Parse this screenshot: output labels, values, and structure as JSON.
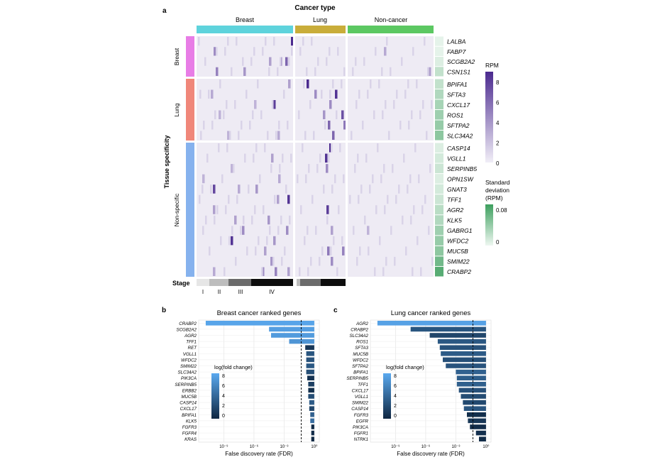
{
  "panel_a": {
    "panel_label": "a",
    "top_title": "Cancer type",
    "groups": [
      {
        "label": "Breast",
        "color": "#5ed3dc"
      },
      {
        "label": "Lung",
        "color": "#c9ad3a"
      },
      {
        "label": "Non-cancer",
        "color": "#5cc862"
      }
    ],
    "ylabel": "Tissue specificity",
    "tissue_groups": [
      {
        "label": "Breast",
        "color": "#e87de6"
      },
      {
        "label": "Lung",
        "color": "#f0877a"
      },
      {
        "label": "Non-specific",
        "color": "#86b2ee"
      }
    ],
    "genes": [
      "LALBA",
      "FABP7",
      "SCGB2A2",
      "CSN1S1",
      "BPIFA1",
      "SFTA3",
      "CXCL17",
      "ROS1",
      "SFTPA2",
      "SLC34A2",
      "CASP14",
      "VGLL1",
      "SERPINB5",
      "OPN1SW",
      "GNAT3",
      "TFF1",
      "AGR2",
      "KLK5",
      "GABRG1",
      "WFDC2",
      "MUC5B",
      "SMIM22",
      "CRABP2"
    ],
    "stage_label": "Stage",
    "stage_ticks": [
      "I",
      "II",
      "III",
      "IV"
    ],
    "rpm_legend": {
      "title": "RPM",
      "ticks": [
        "8",
        "6",
        "4",
        "2",
        "0"
      ],
      "color_low": "#f1eef7",
      "color_high": "#4b2a8f"
    },
    "sd_legend": {
      "title_lines": [
        "Standard",
        "deviation",
        "(RPM)"
      ],
      "ticks": [
        "0.08",
        "0"
      ],
      "color_low": "#eef7f1",
      "color_high": "#3d9f5e"
    }
  },
  "chart_data": [
    {
      "type": "bar",
      "panel_label": "b",
      "title": "Breast cancer ranked genes",
      "xlabel": "False discovery rate (FDR)",
      "x_scale": "log",
      "x_ticks": [
        "10⁻⁹",
        "10⁻⁶",
        "10⁻³",
        "10⁰"
      ],
      "categories": [
        "CRABP2",
        "SCGB2A2",
        "AGR2",
        "TFF1",
        "RET",
        "VGLL1",
        "WFDC2",
        "SMIM22",
        "SLC34A2",
        "PIK3CA",
        "SERPINB5",
        "ERBB2",
        "MUC5B",
        "CASP14",
        "CXCL17",
        "BPIFA1",
        "KLK5",
        "FGFR3",
        "FGFR4",
        "KRAS"
      ],
      "fdr_log10": [
        -10.8,
        -4.5,
        -4.3,
        -2.5,
        -0.9,
        -0.8,
        -0.8,
        -0.8,
        -0.8,
        -0.7,
        -0.6,
        -0.6,
        -0.6,
        -0.5,
        -0.5,
        -0.4,
        -0.4,
        -0.3,
        -0.3,
        -0.3
      ],
      "log_fold_change": [
        8.2,
        7.8,
        7.6,
        7.2,
        1.0,
        3.0,
        2.8,
        3.2,
        2.6,
        0.8,
        1.5,
        0.5,
        2.4,
        3.4,
        2.0,
        3.8,
        4.6,
        0.2,
        0.3,
        0.1
      ],
      "threshold_fdr_log10": -1.3,
      "legend_title": "log(fold change)",
      "legend_ticks": [
        "8",
        "6",
        "4",
        "2",
        "0"
      ]
    },
    {
      "type": "bar",
      "panel_label": "c",
      "title": "Lung cancer ranked genes",
      "xlabel": "False discovery rate (FDR)",
      "x_scale": "log",
      "x_ticks": [
        "10⁻⁹",
        "10⁻⁶",
        "10⁻³",
        "10⁰"
      ],
      "categories": [
        "AGR2",
        "CRABP2",
        "SLC34A2",
        "ROS1",
        "SFTA3",
        "MUC5B",
        "WFDC2",
        "SFTPA2",
        "BPIFA1",
        "SERPINB5",
        "TFF1",
        "CXCL17",
        "VGLL1",
        "SMIM22",
        "CASP14",
        "FGFR3",
        "EGFR",
        "PIK3CA",
        "FGFR1",
        "NTRK1"
      ],
      "fdr_log10": [
        -10.8,
        -7.5,
        -5.6,
        -4.8,
        -4.6,
        -4.5,
        -4.3,
        -4.0,
        -3.0,
        -2.9,
        -2.9,
        -2.7,
        -2.5,
        -2.3,
        -2.2,
        -1.9,
        -1.8,
        -1.6,
        -1.0,
        -0.7
      ],
      "log_fold_change": [
        8.0,
        3.0,
        2.0,
        3.2,
        2.8,
        3.4,
        2.6,
        2.9,
        3.8,
        3.6,
        3.7,
        2.7,
        2.4,
        2.2,
        3.0,
        0.5,
        1.0,
        0.4,
        0.6,
        0.3
      ],
      "threshold_fdr_log10": -1.3,
      "legend_title": "log(fold change)",
      "legend_ticks": [
        "8",
        "6",
        "4",
        "2",
        "0"
      ]
    }
  ]
}
